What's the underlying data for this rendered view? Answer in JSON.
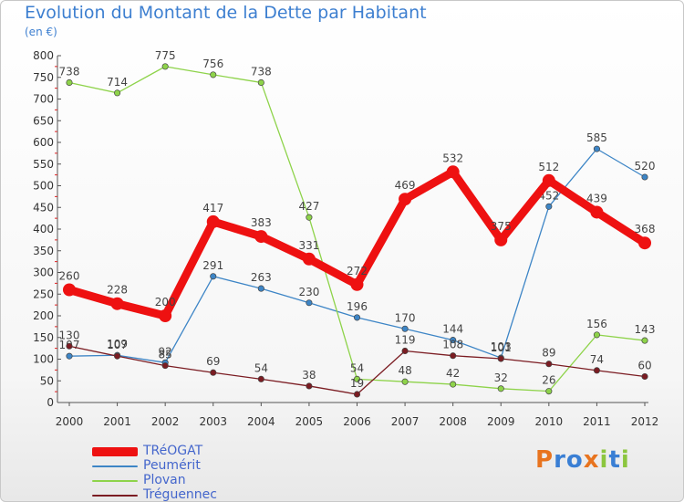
{
  "header": {
    "title": "Evolution du Montant de la Dette par Habitant",
    "subtitle": "(en €)"
  },
  "logo": {
    "text": "Proxiti",
    "letters": [
      {
        "ch": "P",
        "color": "#e8741f"
      },
      {
        "ch": "r",
        "color": "#3a7fd4"
      },
      {
        "ch": "o",
        "color": "#3a7fd4"
      },
      {
        "ch": "x",
        "color": "#e8741f"
      },
      {
        "ch": "i",
        "color": "#8cc63f"
      },
      {
        "ch": "t",
        "color": "#3a7fd4"
      },
      {
        "ch": "i",
        "color": "#8cc63f"
      }
    ]
  },
  "chart_data": {
    "type": "line",
    "title": "Evolution du Montant de la Dette par Habitant",
    "subtitle": "(en €)",
    "xlabel": "",
    "ylabel": "",
    "ylim": [
      0,
      800
    ],
    "yticks": [
      0,
      50,
      100,
      150,
      200,
      250,
      300,
      350,
      400,
      450,
      500,
      550,
      600,
      650,
      700,
      750,
      800
    ],
    "grid": false,
    "legend_position": "bottom-left",
    "x": [
      "2000",
      "2001",
      "2002",
      "2003",
      "2004",
      "2005",
      "2006",
      "2007",
      "2008",
      "2009",
      "2010",
      "2011",
      "2012"
    ],
    "series": [
      {
        "name": "Peumérit",
        "color": "#3d85c6",
        "values": [
          107,
          109,
          92,
          291,
          263,
          230,
          196,
          170,
          144,
          103,
          452,
          585,
          520
        ]
      },
      {
        "name": "Plovan",
        "color": "#8ed34a",
        "values": [
          738,
          714,
          775,
          756,
          738,
          427,
          54,
          48,
          42,
          32,
          26,
          156,
          143
        ]
      },
      {
        "name": "Tréguennec",
        "color": "#7b1c22",
        "values": [
          130,
          107,
          85,
          69,
          54,
          38,
          19,
          119,
          108,
          101,
          89,
          74,
          60
        ]
      },
      {
        "name": "TRéOGAT",
        "color": "#ee1111",
        "values": [
          260,
          228,
          200,
          417,
          383,
          331,
          272,
          469,
          532,
          375,
          512,
          439,
          368
        ]
      }
    ]
  },
  "legend": {
    "items": [
      {
        "label": "TRéOGAT",
        "color": "#ee1111",
        "weight": "thick"
      },
      {
        "label": "Peumérit",
        "color": "#3d85c6",
        "weight": "thin"
      },
      {
        "label": "Plovan",
        "color": "#8ed34a",
        "weight": "thin"
      },
      {
        "label": "Tréguennec",
        "color": "#7b1c22",
        "weight": "thin"
      }
    ]
  }
}
